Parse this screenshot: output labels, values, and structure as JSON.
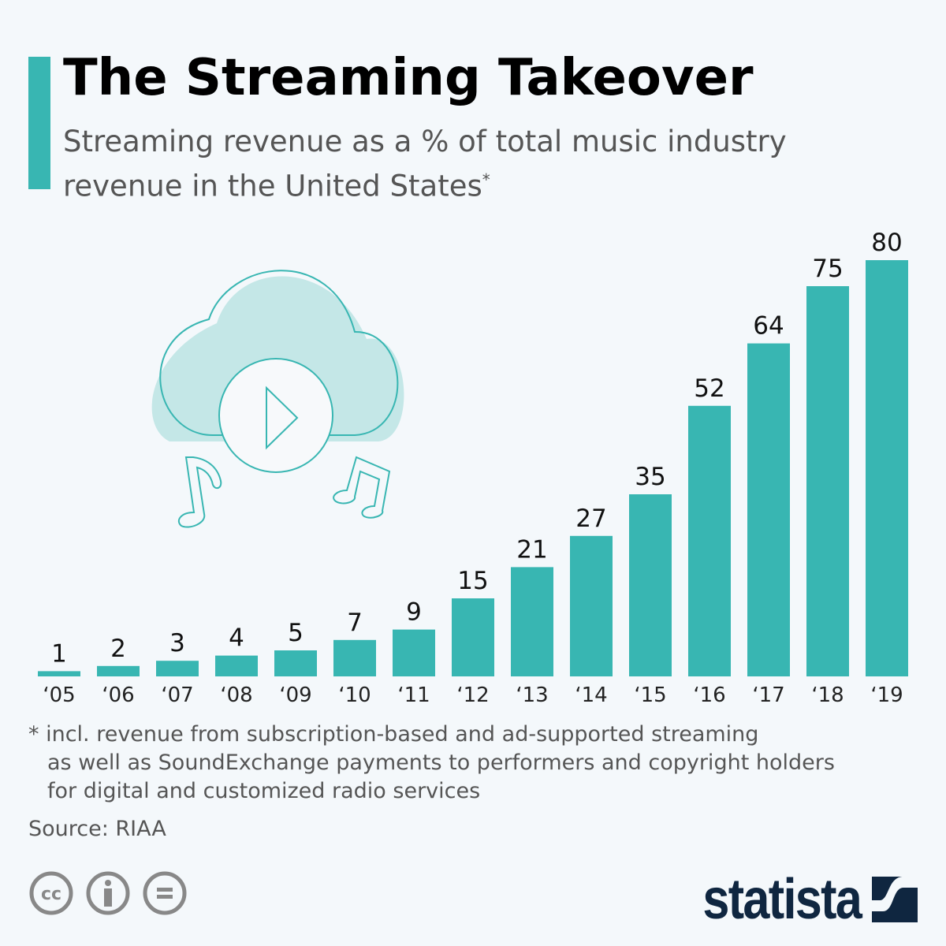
{
  "header": {
    "title": "The Streaming Takeover",
    "subtitle": "Streaming revenue as a % of total music industry revenue in the United States",
    "subtitle_mark": "*"
  },
  "chart_data": {
    "type": "bar",
    "title": "The Streaming Takeover",
    "subtitle": "Streaming revenue as a % of total music industry revenue in the United States*",
    "categories": [
      "‘05",
      "‘06",
      "‘07",
      "‘08",
      "‘09",
      "‘10",
      "‘11",
      "‘12",
      "‘13",
      "‘14",
      "‘15",
      "‘16",
      "‘17",
      "‘18",
      "‘19"
    ],
    "values": [
      1,
      2,
      3,
      4,
      5,
      7,
      9,
      15,
      21,
      27,
      35,
      52,
      64,
      75,
      80
    ],
    "ylim": [
      0,
      80
    ],
    "grid": false,
    "data_labels": true,
    "bar_color": "#38b6b2"
  },
  "illustration": {
    "icons": [
      "cloud-icon",
      "play-icon",
      "music-note-icon",
      "double-music-note-icon"
    ]
  },
  "footnote": {
    "line1": "* incl. revenue from subscription-based and ad-supported streaming",
    "line2": "as well as SoundExchange payments to performers and copyright holders",
    "line3": "for digital and customized radio services"
  },
  "source": "Source: RIAA",
  "license_icons": [
    "cc-icon",
    "attribution-icon",
    "no-derivatives-icon"
  ],
  "brand": {
    "name": "statista",
    "color": "#0f2640"
  },
  "colors": {
    "accent": "#38b6b2",
    "cloud_fill": "#c4e7e7",
    "text": "#555555"
  }
}
